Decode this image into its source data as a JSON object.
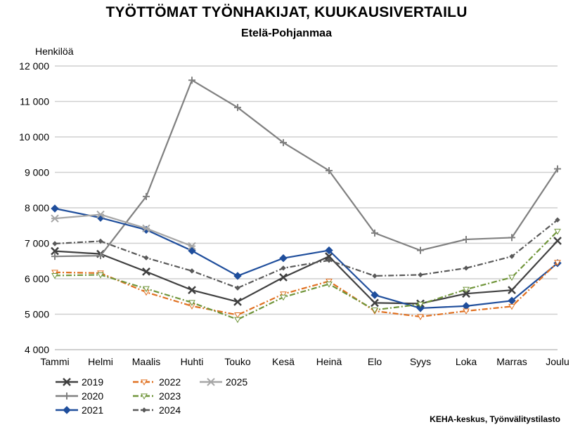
{
  "title": "TYÖTTÖMAT TYÖNHAKIJAT, KUUKAUSIVERTAILU",
  "subtitle": "Etelä-Pohjanmaa",
  "source": "KEHA-keskus, Työnvälitystilasto",
  "chart_data": {
    "type": "line",
    "title": "TYÖTTÖMAT TYÖNHAKIJAT, KUUKAUSIVERTAILU",
    "subtitle": "Etelä-Pohjanmaa",
    "ylabel": "Henkilöä",
    "xlabel": "",
    "ylim": [
      4000,
      12000
    ],
    "yticks": [
      4000,
      5000,
      6000,
      7000,
      8000,
      9000,
      10000,
      11000,
      12000
    ],
    "ytick_labels": [
      "4 000",
      "5 000",
      "6 000",
      "7 000",
      "8 000",
      "9 000",
      "10 000",
      "11 000",
      "12 000"
    ],
    "grid": true,
    "legend_position": "bottom-left",
    "categories": [
      "Tammi",
      "Helmi",
      "Maalis",
      "Huhti",
      "Touko",
      "Kesä",
      "Heinä",
      "Elo",
      "Syys",
      "Loka",
      "Marras",
      "Joulu"
    ],
    "series": [
      {
        "name": "2019",
        "color": "#404040",
        "dash": "solid",
        "marker": "x",
        "values": [
          6780,
          6700,
          6200,
          5680,
          5350,
          6040,
          6630,
          5320,
          5300,
          5580,
          5680,
          7070
        ]
      },
      {
        "name": "2020",
        "color": "#808080",
        "dash": "solid",
        "marker": "plus",
        "values": [
          6630,
          6650,
          8320,
          11600,
          10830,
          9840,
          9050,
          7290,
          6800,
          7110,
          7160,
          9100
        ]
      },
      {
        "name": "2021",
        "color": "#1f4e9c",
        "dash": "solid",
        "marker": "diamond",
        "values": [
          7980,
          7720,
          7380,
          6790,
          6080,
          6580,
          6800,
          5540,
          5170,
          5230,
          5380,
          6440
        ]
      },
      {
        "name": "2022",
        "color": "#e07020",
        "dash": "dashdot",
        "marker": "triangle",
        "values": [
          6180,
          6160,
          5620,
          5230,
          4980,
          5570,
          5930,
          5090,
          4930,
          5090,
          5220,
          6460
        ]
      },
      {
        "name": "2023",
        "color": "#70953a",
        "dash": "dashdot",
        "marker": "triangle",
        "values": [
          6090,
          6110,
          5720,
          5330,
          4850,
          5480,
          5850,
          5120,
          5280,
          5700,
          6040,
          7340
        ]
      },
      {
        "name": "2024",
        "color": "#595959",
        "dash": "dashdot",
        "marker": "dot",
        "values": [
          6990,
          7060,
          6590,
          6220,
          5740,
          6300,
          6520,
          6080,
          6110,
          6300,
          6630,
          7660
        ]
      },
      {
        "name": "2025",
        "color": "#a6a6a6",
        "dash": "solid",
        "marker": "asterisk",
        "values": [
          7700,
          7810,
          7420,
          6920,
          null,
          null,
          null,
          null,
          null,
          null,
          null,
          null
        ]
      }
    ]
  }
}
